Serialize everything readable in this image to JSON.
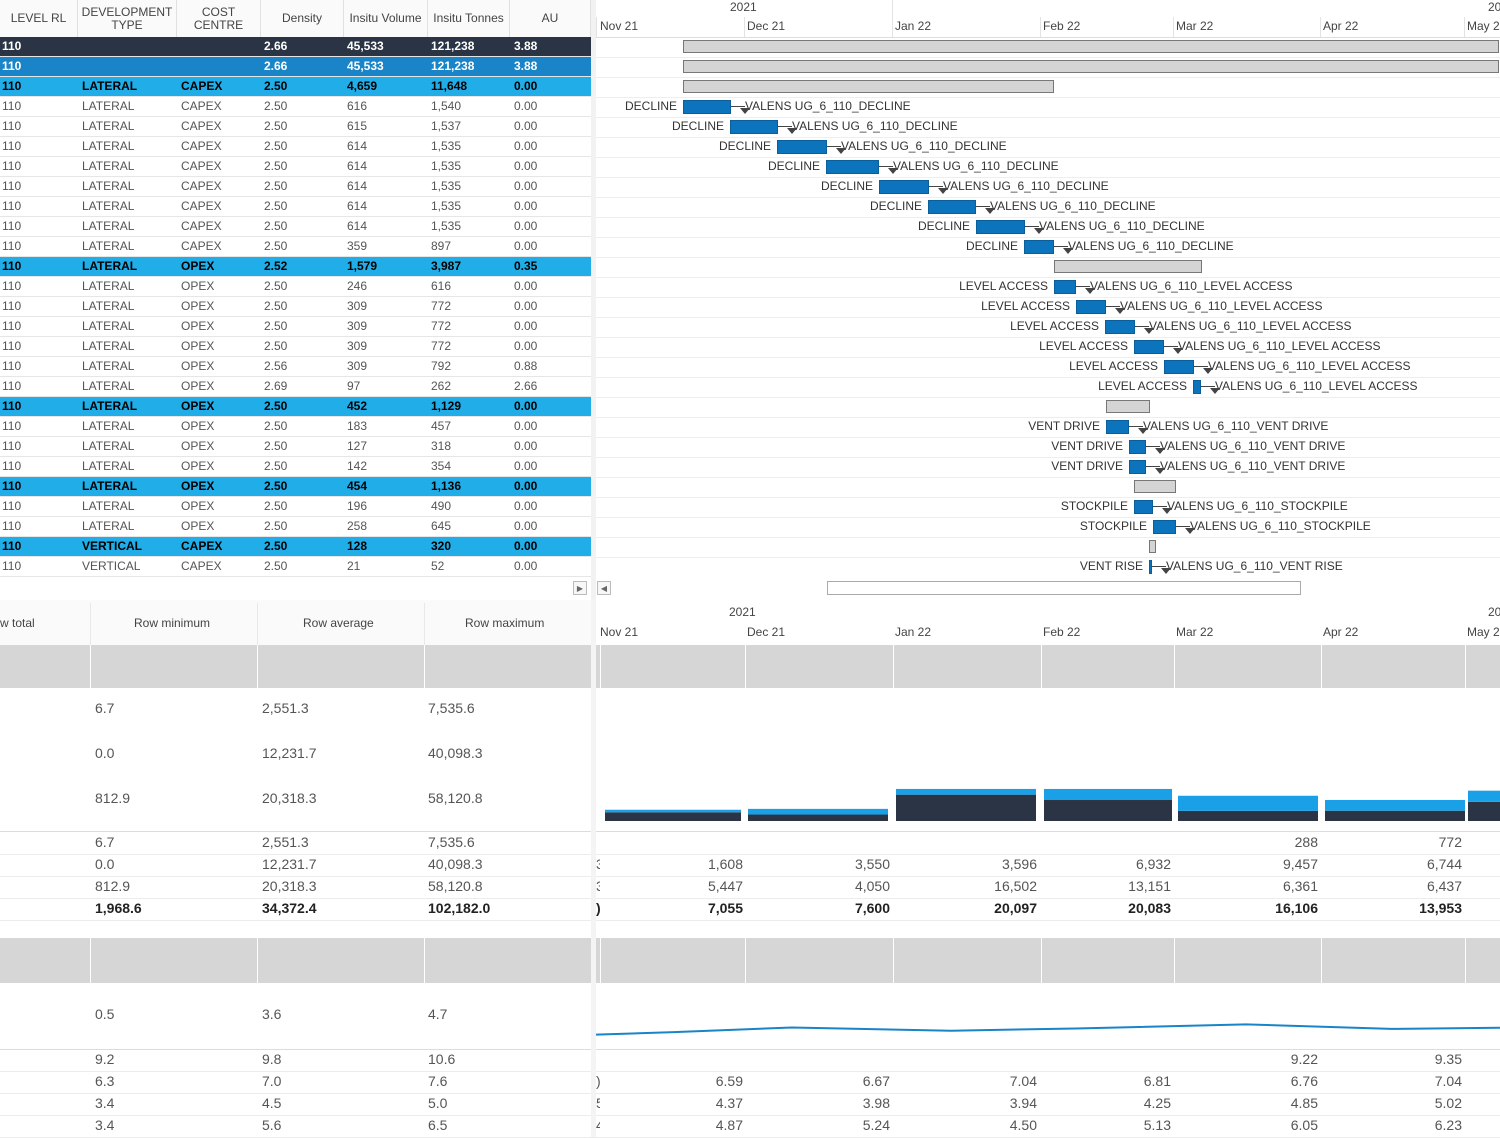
{
  "grid": {
    "columns": [
      "LEVEL RL",
      "DEVELOPMENT TYPE",
      "COST CENTRE",
      "Density",
      "Insitu Volume",
      "Insitu Tonnes",
      "AU"
    ],
    "rows": [
      {
        "style": "dark",
        "rl": "110",
        "dev": "",
        "cc": "",
        "density": "2.66",
        "vol": "45,533",
        "tonnes": "121,238",
        "au": "3.88"
      },
      {
        "style": "hl2",
        "rl": "110",
        "dev": "",
        "cc": "",
        "density": "2.66",
        "vol": "45,533",
        "tonnes": "121,238",
        "au": "3.88"
      },
      {
        "style": "hl",
        "rl": "110",
        "dev": "LATERAL",
        "cc": "CAPEX",
        "density": "2.50",
        "vol": "4,659",
        "tonnes": "11,648",
        "au": "0.00"
      },
      {
        "style": "",
        "rl": "110",
        "dev": "LATERAL",
        "cc": "CAPEX",
        "density": "2.50",
        "vol": "616",
        "tonnes": "1,540",
        "au": "0.00"
      },
      {
        "style": "",
        "rl": "110",
        "dev": "LATERAL",
        "cc": "CAPEX",
        "density": "2.50",
        "vol": "615",
        "tonnes": "1,537",
        "au": "0.00"
      },
      {
        "style": "",
        "rl": "110",
        "dev": "LATERAL",
        "cc": "CAPEX",
        "density": "2.50",
        "vol": "614",
        "tonnes": "1,535",
        "au": "0.00"
      },
      {
        "style": "",
        "rl": "110",
        "dev": "LATERAL",
        "cc": "CAPEX",
        "density": "2.50",
        "vol": "614",
        "tonnes": "1,535",
        "au": "0.00"
      },
      {
        "style": "",
        "rl": "110",
        "dev": "LATERAL",
        "cc": "CAPEX",
        "density": "2.50",
        "vol": "614",
        "tonnes": "1,535",
        "au": "0.00"
      },
      {
        "style": "",
        "rl": "110",
        "dev": "LATERAL",
        "cc": "CAPEX",
        "density": "2.50",
        "vol": "614",
        "tonnes": "1,535",
        "au": "0.00"
      },
      {
        "style": "",
        "rl": "110",
        "dev": "LATERAL",
        "cc": "CAPEX",
        "density": "2.50",
        "vol": "614",
        "tonnes": "1,535",
        "au": "0.00"
      },
      {
        "style": "",
        "rl": "110",
        "dev": "LATERAL",
        "cc": "CAPEX",
        "density": "2.50",
        "vol": "359",
        "tonnes": "897",
        "au": "0.00"
      },
      {
        "style": "hl",
        "rl": "110",
        "dev": "LATERAL",
        "cc": "OPEX",
        "density": "2.52",
        "vol": "1,579",
        "tonnes": "3,987",
        "au": "0.35"
      },
      {
        "style": "",
        "rl": "110",
        "dev": "LATERAL",
        "cc": "OPEX",
        "density": "2.50",
        "vol": "246",
        "tonnes": "616",
        "au": "0.00"
      },
      {
        "style": "",
        "rl": "110",
        "dev": "LATERAL",
        "cc": "OPEX",
        "density": "2.50",
        "vol": "309",
        "tonnes": "772",
        "au": "0.00"
      },
      {
        "style": "",
        "rl": "110",
        "dev": "LATERAL",
        "cc": "OPEX",
        "density": "2.50",
        "vol": "309",
        "tonnes": "772",
        "au": "0.00"
      },
      {
        "style": "",
        "rl": "110",
        "dev": "LATERAL",
        "cc": "OPEX",
        "density": "2.50",
        "vol": "309",
        "tonnes": "772",
        "au": "0.00"
      },
      {
        "style": "",
        "rl": "110",
        "dev": "LATERAL",
        "cc": "OPEX",
        "density": "2.56",
        "vol": "309",
        "tonnes": "792",
        "au": "0.88"
      },
      {
        "style": "",
        "rl": "110",
        "dev": "LATERAL",
        "cc": "OPEX",
        "density": "2.69",
        "vol": "97",
        "tonnes": "262",
        "au": "2.66"
      },
      {
        "style": "hl",
        "rl": "110",
        "dev": "LATERAL",
        "cc": "OPEX",
        "density": "2.50",
        "vol": "452",
        "tonnes": "1,129",
        "au": "0.00"
      },
      {
        "style": "",
        "rl": "110",
        "dev": "LATERAL",
        "cc": "OPEX",
        "density": "2.50",
        "vol": "183",
        "tonnes": "457",
        "au": "0.00"
      },
      {
        "style": "",
        "rl": "110",
        "dev": "LATERAL",
        "cc": "OPEX",
        "density": "2.50",
        "vol": "127",
        "tonnes": "318",
        "au": "0.00"
      },
      {
        "style": "",
        "rl": "110",
        "dev": "LATERAL",
        "cc": "OPEX",
        "density": "2.50",
        "vol": "142",
        "tonnes": "354",
        "au": "0.00"
      },
      {
        "style": "hl",
        "rl": "110",
        "dev": "LATERAL",
        "cc": "OPEX",
        "density": "2.50",
        "vol": "454",
        "tonnes": "1,136",
        "au": "0.00"
      },
      {
        "style": "",
        "rl": "110",
        "dev": "LATERAL",
        "cc": "OPEX",
        "density": "2.50",
        "vol": "196",
        "tonnes": "490",
        "au": "0.00"
      },
      {
        "style": "",
        "rl": "110",
        "dev": "LATERAL",
        "cc": "OPEX",
        "density": "2.50",
        "vol": "258",
        "tonnes": "645",
        "au": "0.00"
      },
      {
        "style": "hl",
        "rl": "110",
        "dev": "VERTICAL",
        "cc": "CAPEX",
        "density": "2.50",
        "vol": "128",
        "tonnes": "320",
        "au": "0.00"
      },
      {
        "style": "",
        "rl": "110",
        "dev": "VERTICAL",
        "cc": "CAPEX",
        "density": "2.50",
        "vol": "21",
        "tonnes": "52",
        "au": "0.00"
      }
    ]
  },
  "timeline": {
    "years": [
      "2021",
      "20"
    ],
    "months": [
      "Nov 21",
      "Dec 21",
      "Jan 22",
      "Feb 22",
      "Mar 22",
      "Apr 22",
      "May 2"
    ],
    "bottom_years": [
      "2021",
      "20"
    ],
    "bottom_months": [
      "Nov 21",
      "Dec 21",
      "Jan 22",
      "Feb 22",
      "Mar 22",
      "Apr 22",
      "May 2"
    ]
  },
  "gantt": {
    "bars": [
      {
        "kind": "sum",
        "row": 0
      },
      {
        "kind": "sum",
        "row": 1
      },
      {
        "kind": "sum",
        "row": 2
      },
      {
        "kind": "task",
        "row": 3,
        "left_label": "DECLINE",
        "right_label": "VALENS UG_6_110_DECLINE"
      },
      {
        "kind": "task",
        "row": 4,
        "left_label": "DECLINE",
        "right_label": "VALENS UG_6_110_DECLINE"
      },
      {
        "kind": "task",
        "row": 5,
        "left_label": "DECLINE",
        "right_label": "VALENS UG_6_110_DECLINE"
      },
      {
        "kind": "task",
        "row": 6,
        "left_label": "DECLINE",
        "right_label": "VALENS UG_6_110_DECLINE"
      },
      {
        "kind": "task",
        "row": 7,
        "left_label": "DECLINE",
        "right_label": "VALENS UG_6_110_DECLINE"
      },
      {
        "kind": "task",
        "row": 8,
        "left_label": "DECLINE",
        "right_label": "VALENS UG_6_110_DECLINE"
      },
      {
        "kind": "task",
        "row": 9,
        "left_label": "DECLINE",
        "right_label": "VALENS UG_6_110_DECLINE"
      },
      {
        "kind": "task",
        "row": 10,
        "left_label": "DECLINE",
        "right_label": "VALENS UG_6_110_DECLINE"
      },
      {
        "kind": "sum",
        "row": 11
      },
      {
        "kind": "task",
        "row": 12,
        "left_label": "LEVEL ACCESS",
        "right_label": "VALENS UG_6_110_LEVEL ACCESS"
      },
      {
        "kind": "task",
        "row": 13,
        "left_label": "LEVEL ACCESS",
        "right_label": "VALENS UG_6_110_LEVEL ACCESS"
      },
      {
        "kind": "task",
        "row": 14,
        "left_label": "LEVEL ACCESS",
        "right_label": "VALENS UG_6_110_LEVEL ACCESS"
      },
      {
        "kind": "task",
        "row": 15,
        "left_label": "LEVEL ACCESS",
        "right_label": "VALENS UG_6_110_LEVEL ACCESS"
      },
      {
        "kind": "task",
        "row": 16,
        "left_label": "LEVEL ACCESS",
        "right_label": "VALENS UG_6_110_LEVEL ACCESS"
      },
      {
        "kind": "task",
        "row": 17,
        "left_label": "LEVEL ACCESS",
        "right_label": "VALENS UG_6_110_LEVEL ACCESS"
      },
      {
        "kind": "sum",
        "row": 18
      },
      {
        "kind": "task",
        "row": 19,
        "left_label": "VENT DRIVE",
        "right_label": "VALENS UG_6_110_VENT DRIVE"
      },
      {
        "kind": "task",
        "row": 20,
        "left_label": "VENT DRIVE",
        "right_label": "VALENS UG_6_110_VENT DRIVE"
      },
      {
        "kind": "task",
        "row": 21,
        "left_label": "VENT DRIVE",
        "right_label": "VALENS UG_6_110_VENT DRIVE"
      },
      {
        "kind": "sum",
        "row": 22
      },
      {
        "kind": "task",
        "row": 23,
        "left_label": "STOCKPILE",
        "right_label": "VALENS UG_6_110_STOCKPILE"
      },
      {
        "kind": "task",
        "row": 24,
        "left_label": "STOCKPILE",
        "right_label": "VALENS UG_6_110_STOCKPILE"
      },
      {
        "kind": "sum",
        "row": 25
      },
      {
        "kind": "task",
        "row": 26,
        "left_label": "VENT RISE",
        "right_label": "VALENS UG_6_110_VENT RISE"
      }
    ]
  },
  "stats": {
    "headers": [
      "w total",
      "Row minimum",
      "Row average",
      "Row maximum"
    ],
    "section1_rows": [
      {
        "min": "6.7",
        "avg": "2,551.3",
        "max": "7,535.6"
      },
      {
        "min": "0.0",
        "avg": "12,231.7",
        "max": "40,098.3"
      },
      {
        "min": "812.9",
        "avg": "20,318.3",
        "max": "58,120.8"
      }
    ],
    "section1_table": [
      {
        "min": "6.7",
        "avg": "2,551.3",
        "max": "7,535.6",
        "bold": false
      },
      {
        "min": "0.0",
        "avg": "12,231.7",
        "max": "40,098.3",
        "bold": false
      },
      {
        "min": "812.9",
        "avg": "20,318.3",
        "max": "58,120.8",
        "bold": false
      },
      {
        "min": "1,968.6",
        "avg": "34,372.4",
        "max": "102,182.0",
        "bold": true
      }
    ],
    "section2_rows": [
      {
        "min": "0.5",
        "avg": "3.6",
        "max": "4.7"
      }
    ],
    "section2_table": [
      {
        "min": "9.2",
        "avg": "9.8",
        "max": "10.6"
      },
      {
        "min": "6.3",
        "avg": "7.0",
        "max": "7.6"
      },
      {
        "min": "3.4",
        "avg": "4.5",
        "max": "5.0"
      },
      {
        "min": "3.4",
        "avg": "5.6",
        "max": "6.5"
      }
    ]
  },
  "period_table1": {
    "rows": [
      {
        "edge": "",
        "values": [
          "",
          "",
          "",
          "",
          "",
          "288",
          "772"
        ],
        "bold": false
      },
      {
        "edge": "3",
        "values": [
          "1,608",
          "3,550",
          "3,596",
          "6,932",
          "9,457",
          "6,744"
        ],
        "bold": false
      },
      {
        "edge": "3",
        "values": [
          "5,447",
          "4,050",
          "16,502",
          "13,151",
          "6,361",
          "6,437"
        ],
        "bold": false
      },
      {
        "edge": ")",
        "values": [
          "7,055",
          "7,600",
          "20,097",
          "20,083",
          "16,106",
          "13,953"
        ],
        "bold": true
      }
    ]
  },
  "period_table2": {
    "rows": [
      {
        "edge": "",
        "values": [
          "",
          "",
          "",
          "",
          "9.22",
          "9.35"
        ]
      },
      {
        "edge": ")",
        "values": [
          "6.59",
          "6.67",
          "7.04",
          "6.81",
          "6.76",
          "7.04"
        ]
      },
      {
        "edge": "5",
        "values": [
          "4.37",
          "3.98",
          "3.94",
          "4.25",
          "4.85",
          "5.02"
        ]
      },
      {
        "edge": "4",
        "values": [
          "4.87",
          "5.24",
          "4.50",
          "5.13",
          "6.05",
          "6.23"
        ]
      }
    ]
  },
  "chart_data": [
    {
      "type": "bar",
      "categories": [
        "Nov 21",
        "Dec 21",
        "Jan 22",
        "Feb 22",
        "Mar 22",
        "Apr 22",
        "May 2"
      ],
      "series": [
        {
          "values": [
            1608,
            3550,
            3596,
            6932,
            9457,
            6744,
            7000
          ]
        },
        {
          "values": [
            5447,
            4050,
            16502,
            13151,
            6361,
            6437,
            12000
          ]
        }
      ],
      "colors": [
        "#1aa0e6",
        "#2a3444"
      ],
      "ylim": [
        0,
        50000
      ]
    },
    {
      "type": "line",
      "categories": [
        "Nov 21",
        "Dec 21",
        "Jan 22",
        "Feb 22",
        "Mar 22",
        "Apr 22",
        "May 2"
      ],
      "series": [
        {
          "values": [
            3.8,
            4.37,
            3.98,
            4.25,
            4.75,
            4.2,
            4.35
          ]
        }
      ],
      "colors": [
        "#1a84c8"
      ],
      "ylim": [
        0,
        8
      ]
    }
  ]
}
